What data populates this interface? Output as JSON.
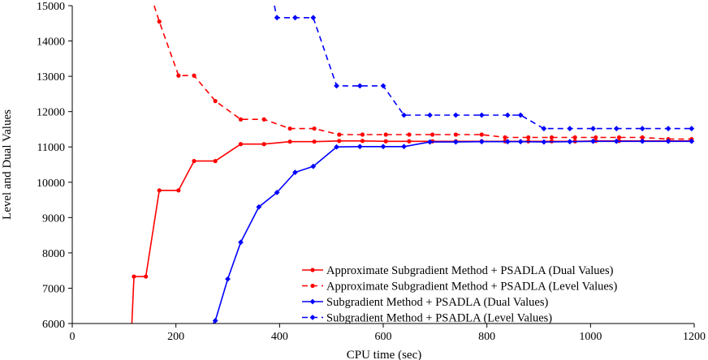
{
  "chart_data": {
    "type": "line",
    "title": "",
    "xlabel": "CPU time (sec)",
    "ylabel": "Level and Dual Values",
    "xlim": [
      0,
      1200
    ],
    "ylim": [
      6000,
      15000
    ],
    "xticks": [
      0,
      200,
      400,
      600,
      800,
      1000,
      1200
    ],
    "yticks": [
      6000,
      7000,
      8000,
      9000,
      10000,
      11000,
      12000,
      13000,
      14000,
      15000
    ],
    "grid": false,
    "legend_position": "bottom-right",
    "series": [
      {
        "name": "Approximate Subgradient Method + PSADLA (Dual Values)",
        "color": "#ff0000",
        "dash": "solid",
        "marker": "circle",
        "x": [
          115,
          119,
          142,
          168,
          205,
          235,
          276,
          325,
          370,
          420,
          467,
          515,
          560,
          605,
          650,
          695,
          740,
          790,
          835,
          880,
          925,
          970,
          1010,
          1055,
          1100,
          1150,
          1195
        ],
        "y": [
          6000,
          7330,
          7330,
          9770,
          9770,
          10600,
          10600,
          11080,
          11080,
          11150,
          11150,
          11170,
          11170,
          11160,
          11160,
          11160,
          11160,
          11160,
          11160,
          11160,
          11160,
          11160,
          11170,
          11170,
          11170,
          11170,
          11170
        ]
      },
      {
        "name": "Approximate Subgradient Method + PSADLA (Level Values)",
        "color": "#ff0000",
        "dash": "dashed",
        "marker": "circle",
        "x": [
          158,
          168,
          205,
          235,
          276,
          325,
          370,
          420,
          467,
          515,
          560,
          605,
          650,
          695,
          740,
          790,
          835,
          880,
          925,
          970,
          1010,
          1055,
          1100,
          1150,
          1195
        ],
        "y": [
          15000,
          14550,
          13020,
          13020,
          12300,
          11780,
          11780,
          11520,
          11520,
          11350,
          11350,
          11350,
          11350,
          11350,
          11350,
          11350,
          11270,
          11270,
          11270,
          11270,
          11270,
          11270,
          11270,
          11220,
          11220
        ]
      },
      {
        "name": "Subgradient Method + PSADLA (Dual Values)",
        "color": "#0000ff",
        "dash": "solid",
        "marker": "diamond",
        "x": [
          272,
          276,
          300,
          325,
          360,
          395,
          430,
          465,
          510,
          555,
          600,
          640,
          690,
          740,
          790,
          840,
          865,
          910,
          960,
          1005,
          1050,
          1100,
          1150,
          1195
        ],
        "y": [
          6000,
          6080,
          7260,
          8300,
          9300,
          9710,
          10280,
          10450,
          11000,
          11010,
          11010,
          11010,
          11140,
          11140,
          11150,
          11150,
          11150,
          11140,
          11150,
          11160,
          11160,
          11160,
          11160,
          11160
        ]
      },
      {
        "name": "Subgradient Method + PSADLA (Level Values)",
        "color": "#0000ff",
        "dash": "dashed",
        "marker": "diamond",
        "x": [
          390,
          395,
          430,
          465,
          510,
          555,
          600,
          640,
          690,
          740,
          790,
          840,
          865,
          910,
          960,
          1005,
          1050,
          1100,
          1150,
          1195
        ],
        "y": [
          15000,
          14660,
          14660,
          14660,
          12730,
          12730,
          12730,
          11900,
          11900,
          11900,
          11900,
          11900,
          11900,
          11520,
          11520,
          11520,
          11520,
          11520,
          11520,
          11520
        ]
      }
    ]
  }
}
